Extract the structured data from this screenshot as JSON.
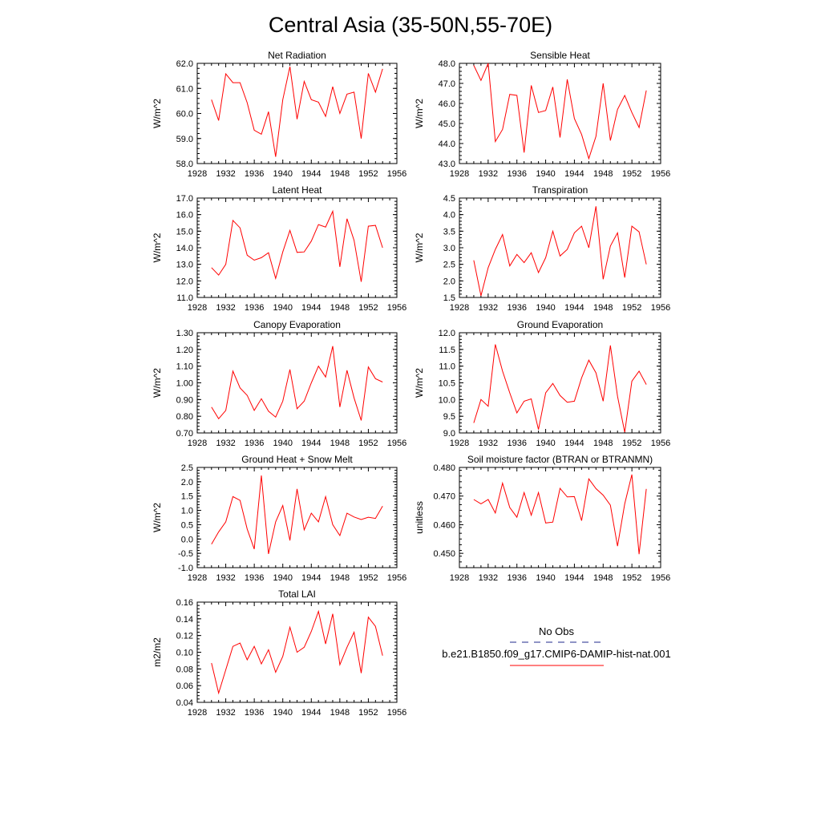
{
  "figure": {
    "title": "Central Asia (35-50N,55-70E)"
  },
  "legend": {
    "title": "No Obs",
    "entries": [
      {
        "label": "",
        "color": "#1f2a8c",
        "dash": true
      },
      {
        "label": "b.e21.B1850.f09_g17.CMIP6-DAMIP-hist-nat.001",
        "color": "#ff0000",
        "dash": false
      }
    ]
  },
  "chart_data": [
    {
      "type": "line",
      "title": "Net Radiation",
      "ylabel": "W/m^2",
      "xlim": [
        1928,
        1956
      ],
      "ylim": [
        58.0,
        62.0
      ],
      "xticks": [
        1928,
        1932,
        1936,
        1940,
        1944,
        1948,
        1952,
        1956
      ],
      "yticks": [
        "58.0",
        "59.0",
        "60.0",
        "61.0",
        "62.0"
      ],
      "series": [
        {
          "color": "#ff0000",
          "x": [
            1930,
            1931,
            1932,
            1933,
            1934,
            1935,
            1936,
            1937,
            1938,
            1939,
            1940,
            1941,
            1942,
            1943,
            1944,
            1945,
            1946,
            1947,
            1948,
            1949,
            1950,
            1951,
            1952,
            1953,
            1954
          ],
          "y": [
            60.55,
            59.72,
            61.58,
            61.23,
            61.23,
            60.43,
            59.33,
            59.17,
            60.07,
            58.27,
            60.55,
            61.87,
            59.77,
            61.28,
            60.55,
            60.45,
            59.88,
            61.07,
            60.0,
            60.77,
            60.85,
            59.0,
            61.6,
            60.85,
            61.78
          ]
        }
      ]
    },
    {
      "type": "line",
      "title": "Sensible Heat",
      "ylabel": "W/m^2",
      "xlim": [
        1928,
        1956
      ],
      "ylim": [
        43.0,
        48.0
      ],
      "xticks": [
        1928,
        1932,
        1936,
        1940,
        1944,
        1948,
        1952,
        1956
      ],
      "yticks": [
        "43.0",
        "44.0",
        "45.0",
        "46.0",
        "47.0",
        "48.0"
      ],
      "series": [
        {
          "color": "#ff0000",
          "x": [
            1930,
            1931,
            1932,
            1933,
            1934,
            1935,
            1936,
            1937,
            1938,
            1939,
            1940,
            1941,
            1942,
            1943,
            1944,
            1945,
            1946,
            1947,
            1948,
            1949,
            1950,
            1951,
            1952,
            1953,
            1954
          ],
          "y": [
            47.9,
            47.15,
            48.0,
            44.1,
            44.7,
            46.45,
            46.4,
            43.55,
            46.9,
            45.55,
            45.65,
            46.82,
            44.3,
            47.2,
            45.25,
            44.45,
            43.25,
            44.35,
            47.0,
            44.15,
            45.7,
            46.4,
            45.55,
            44.8,
            46.65
          ]
        }
      ]
    },
    {
      "type": "line",
      "title": "Latent Heat",
      "ylabel": "W/m^2",
      "xlim": [
        1928,
        1956
      ],
      "ylim": [
        11.0,
        17.0
      ],
      "xticks": [
        1928,
        1932,
        1936,
        1940,
        1944,
        1948,
        1952,
        1956
      ],
      "yticks": [
        "11.0",
        "12.0",
        "13.0",
        "14.0",
        "15.0",
        "16.0",
        "17.0"
      ],
      "series": [
        {
          "color": "#ff0000",
          "x": [
            1930,
            1931,
            1932,
            1933,
            1934,
            1935,
            1936,
            1937,
            1938,
            1939,
            1940,
            1941,
            1942,
            1943,
            1944,
            1945,
            1946,
            1947,
            1948,
            1949,
            1950,
            1951,
            1952,
            1953,
            1954
          ],
          "y": [
            12.8,
            12.35,
            13.0,
            15.65,
            15.2,
            13.55,
            13.25,
            13.4,
            13.7,
            12.15,
            13.75,
            15.05,
            13.72,
            13.75,
            14.4,
            15.4,
            15.25,
            16.2,
            12.85,
            15.75,
            14.45,
            11.95,
            15.3,
            15.35,
            14.0
          ]
        }
      ]
    },
    {
      "type": "line",
      "title": "Transpiration",
      "ylabel": "W/m^2",
      "xlim": [
        1928,
        1956
      ],
      "ylim": [
        1.5,
        4.5
      ],
      "xticks": [
        1928,
        1932,
        1936,
        1940,
        1944,
        1948,
        1952,
        1956
      ],
      "yticks": [
        "1.5",
        "2.0",
        "2.5",
        "3.0",
        "3.5",
        "4.0",
        "4.5"
      ],
      "series": [
        {
          "color": "#ff0000",
          "x": [
            1930,
            1931,
            1932,
            1933,
            1934,
            1935,
            1936,
            1937,
            1938,
            1939,
            1940,
            1941,
            1942,
            1943,
            1944,
            1945,
            1946,
            1947,
            1948,
            1949,
            1950,
            1951,
            1952,
            1953,
            1954
          ],
          "y": [
            2.62,
            1.55,
            2.4,
            2.95,
            3.4,
            2.45,
            2.8,
            2.55,
            2.85,
            2.25,
            2.7,
            3.5,
            2.75,
            2.95,
            3.45,
            3.65,
            3.0,
            4.25,
            2.05,
            3.05,
            3.45,
            2.1,
            3.65,
            3.48,
            2.5
          ]
        }
      ]
    },
    {
      "type": "line",
      "title": "Canopy Evaporation",
      "ylabel": "W/m^2",
      "xlim": [
        1928,
        1956
      ],
      "ylim": [
        0.7,
        1.3
      ],
      "xticks": [
        1928,
        1932,
        1936,
        1940,
        1944,
        1948,
        1952,
        1956
      ],
      "yticks": [
        "0.70",
        "0.80",
        "0.90",
        "1.00",
        "1.10",
        "1.20",
        "1.30"
      ],
      "series": [
        {
          "color": "#ff0000",
          "x": [
            1930,
            1931,
            1932,
            1933,
            1934,
            1935,
            1936,
            1937,
            1938,
            1939,
            1940,
            1941,
            1942,
            1943,
            1944,
            1945,
            1946,
            1947,
            1948,
            1949,
            1950,
            1951,
            1952,
            1953,
            1954
          ],
          "y": [
            0.855,
            0.785,
            0.835,
            1.07,
            0.97,
            0.925,
            0.835,
            0.905,
            0.83,
            0.795,
            0.89,
            1.08,
            0.845,
            0.89,
            1.0,
            1.1,
            1.035,
            1.22,
            0.855,
            1.075,
            0.91,
            0.775,
            1.095,
            1.025,
            1.005
          ]
        }
      ]
    },
    {
      "type": "line",
      "title": "Ground Evaporation",
      "ylabel": "W/m^2",
      "xlim": [
        1928,
        1956
      ],
      "ylim": [
        9.0,
        12.0
      ],
      "xticks": [
        1928,
        1932,
        1936,
        1940,
        1944,
        1948,
        1952,
        1956
      ],
      "yticks": [
        "9.0",
        "9.5",
        "10.0",
        "10.5",
        "11.0",
        "11.5",
        "12.0"
      ],
      "series": [
        {
          "color": "#ff0000",
          "x": [
            1930,
            1931,
            1932,
            1933,
            1934,
            1935,
            1936,
            1937,
            1938,
            1939,
            1940,
            1941,
            1942,
            1943,
            1944,
            1945,
            1946,
            1947,
            1948,
            1949,
            1950,
            1951,
            1952,
            1953,
            1954
          ],
          "y": [
            9.3,
            10.0,
            9.8,
            11.65,
            10.85,
            10.2,
            9.6,
            9.95,
            10.02,
            9.1,
            10.2,
            10.48,
            10.12,
            9.92,
            9.95,
            10.65,
            11.18,
            10.8,
            9.95,
            11.62,
            10.1,
            9.02,
            10.55,
            10.85,
            10.45
          ]
        }
      ]
    },
    {
      "type": "line",
      "title": "Ground Heat + Snow Melt",
      "ylabel": "W/m^2",
      "xlim": [
        1928,
        1956
      ],
      "ylim": [
        -1.0,
        2.5
      ],
      "xticks": [
        1928,
        1932,
        1936,
        1940,
        1944,
        1948,
        1952,
        1956
      ],
      "yticks": [
        "-1.0",
        "-0.5",
        "0.0",
        "0.5",
        "1.0",
        "1.5",
        "2.0",
        "2.5"
      ],
      "series": [
        {
          "color": "#ff0000",
          "x": [
            1930,
            1931,
            1932,
            1933,
            1934,
            1935,
            1936,
            1937,
            1938,
            1939,
            1940,
            1941,
            1942,
            1943,
            1944,
            1945,
            1946,
            1947,
            1948,
            1949,
            1950,
            1951,
            1952,
            1953,
            1954
          ],
          "y": [
            -0.18,
            0.25,
            0.6,
            1.48,
            1.35,
            0.35,
            -0.35,
            2.22,
            -0.52,
            0.6,
            1.17,
            -0.05,
            1.75,
            0.32,
            0.9,
            0.6,
            1.48,
            0.5,
            0.12,
            0.9,
            0.77,
            0.68,
            0.76,
            0.72,
            1.15
          ]
        }
      ]
    },
    {
      "type": "line",
      "title": "Soil moisture factor (BTRAN or BTRANMN)",
      "ylabel": "unitless",
      "xlim": [
        1928,
        1956
      ],
      "ylim": [
        0.445,
        0.48
      ],
      "xticks": [
        1928,
        1932,
        1936,
        1940,
        1944,
        1948,
        1952,
        1956
      ],
      "yticks": [
        "0.450",
        "0.460",
        "0.470",
        "0.480"
      ],
      "series": [
        {
          "color": "#ff0000",
          "x": [
            1930,
            1931,
            1932,
            1933,
            1934,
            1935,
            1936,
            1937,
            1938,
            1939,
            1940,
            1941,
            1942,
            1943,
            1944,
            1945,
            1946,
            1947,
            1948,
            1949,
            1950,
            1951,
            1952,
            1953,
            1954
          ],
          "y": [
            0.4688,
            0.4673,
            0.4688,
            0.4641,
            0.4745,
            0.466,
            0.4626,
            0.4712,
            0.4633,
            0.4712,
            0.4606,
            0.4609,
            0.4727,
            0.4697,
            0.4698,
            0.4614,
            0.476,
            0.4726,
            0.4703,
            0.4668,
            0.4525,
            0.4673,
            0.4775,
            0.4497,
            0.4725
          ]
        }
      ]
    },
    {
      "type": "line",
      "title": "Total LAI",
      "ylabel": "m2/m2",
      "xlim": [
        1928,
        1956
      ],
      "ylim": [
        0.04,
        0.16
      ],
      "xticks": [
        1928,
        1932,
        1936,
        1940,
        1944,
        1948,
        1952,
        1956
      ],
      "yticks": [
        "0.04",
        "0.06",
        "0.08",
        "0.10",
        "0.12",
        "0.14",
        "0.16"
      ],
      "series": [
        {
          "color": "#ff0000",
          "x": [
            1930,
            1931,
            1932,
            1933,
            1934,
            1935,
            1936,
            1937,
            1938,
            1939,
            1940,
            1941,
            1942,
            1943,
            1944,
            1945,
            1946,
            1947,
            1948,
            1949,
            1950,
            1951,
            1952,
            1953,
            1954
          ],
          "y": [
            0.087,
            0.051,
            0.079,
            0.107,
            0.111,
            0.091,
            0.107,
            0.086,
            0.103,
            0.076,
            0.095,
            0.13,
            0.1,
            0.106,
            0.125,
            0.149,
            0.11,
            0.146,
            0.085,
            0.106,
            0.124,
            0.075,
            0.142,
            0.131,
            0.096
          ]
        }
      ]
    }
  ]
}
